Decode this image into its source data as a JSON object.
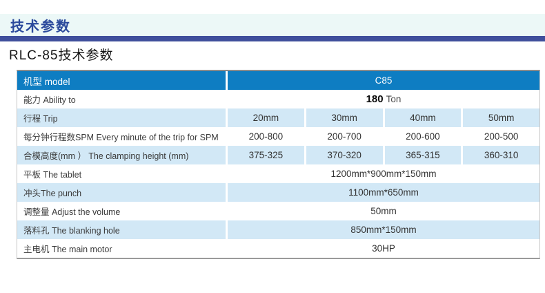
{
  "header": {
    "section_title": "技术参数",
    "subtitle": "RLC-85技术参数"
  },
  "colors": {
    "band_bg": "#ecf8f7",
    "accent_bar": "#3f4f9c",
    "section_title_color": "#2b4a9c",
    "table_header_bg": "#0e7dc2",
    "table_alt_row_bg": "#d2e8f6"
  },
  "table": {
    "header": {
      "label": "机型 model",
      "value": "C85"
    },
    "rows": [
      {
        "label": "能力 Ability to",
        "value_strong": "180",
        "value_suffix": "Ton",
        "alt": false
      },
      {
        "label": "行程 Trip",
        "values": [
          "20mm",
          "30mm",
          "40mm",
          "50mm"
        ],
        "alt": true
      },
      {
        "label": "每分钟行程数SPM Every minute of the trip for SPM",
        "values": [
          "200-800",
          "200-700",
          "200-600",
          "200-500"
        ],
        "alt": false
      },
      {
        "label": "合模高度(mm ）  The clamping height (mm)",
        "values": [
          "375-325",
          "370-320",
          "365-315",
          "360-310"
        ],
        "alt": true
      },
      {
        "label": "平板 The tablet",
        "value": "1200mm*900mm*150mm",
        "alt": false
      },
      {
        "label": "冲头The punch",
        "value": "1100mm*650mm",
        "alt": true
      },
      {
        "label": "调整量 Adjust the volume",
        "value": "50mm",
        "alt": false
      },
      {
        "label": "落料孔 The blanking hole",
        "value": "850mm*150mm",
        "alt": true
      },
      {
        "label": "主电机 The main motor",
        "value": "30HP",
        "alt": false
      }
    ]
  }
}
